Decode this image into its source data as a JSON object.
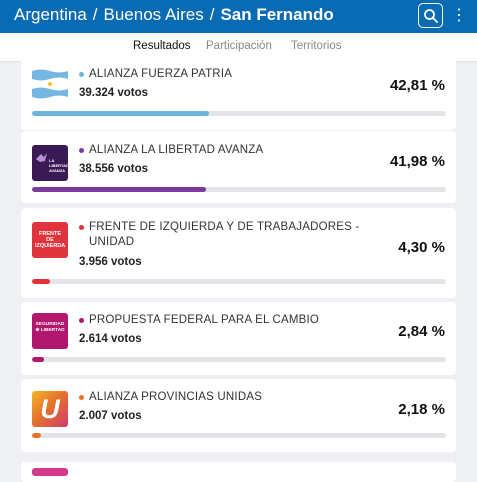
{
  "header": {
    "breadcrumb": [
      "Argentina",
      "Buenos Aires",
      "San Fernando"
    ],
    "separator": "/",
    "search_icon": "search-icon",
    "menu_icon": "more-vertical-icon",
    "menu_glyph": "⋮"
  },
  "tabs": [
    {
      "label": "Resultados",
      "active": true
    },
    {
      "label": "Participación",
      "active": false
    },
    {
      "label": "Territorios",
      "active": false
    }
  ],
  "colors": {
    "brand": "#0a6bb5",
    "afp": "#6cb4dc",
    "lla": "#7b3a9e",
    "fit": "#e0333c",
    "pfc": "#b0176d",
    "apu": "#e5742a"
  },
  "parties": [
    {
      "name": "ALIANZA FUERZA PATRIA",
      "votes": "39.324 votos",
      "percent": "42,81 %",
      "share": 42.81,
      "color": "#6cb4dc",
      "logo": "argentina-flag-icon"
    },
    {
      "name": "ALIANZA LA LIBERTAD AVANZA",
      "votes": "38.556 votos",
      "percent": "41,98 %",
      "share": 41.98,
      "color": "#7b3a9e",
      "logo": "lla-logo",
      "logo_text": "LA LIBERTAD AVANZA"
    },
    {
      "name": "FRENTE DE IZQUIERDA Y DE TRABAJADORES - UNIDAD",
      "votes": "3.956 votos",
      "percent": "4,30 %",
      "share": 4.3,
      "color": "#e0333c",
      "logo": "fit-logo",
      "logo_text": "FRENTE DE IZQUIERDA"
    },
    {
      "name": "PROPUESTA FEDERAL PARA EL CAMBIO",
      "votes": "2.614 votos",
      "percent": "2,84 %",
      "share": 2.84,
      "color": "#b0176d",
      "logo": "pfc-logo",
      "logo_text": "SEGURIDAD ⊕ LIBERTAD"
    },
    {
      "name": "ALIANZA PROVINCIAS UNIDAS",
      "votes": "2.007 votos",
      "percent": "2,18 %",
      "share": 2.18,
      "color": "#e5742a",
      "logo": "apu-logo",
      "logo_text": "U"
    }
  ]
}
